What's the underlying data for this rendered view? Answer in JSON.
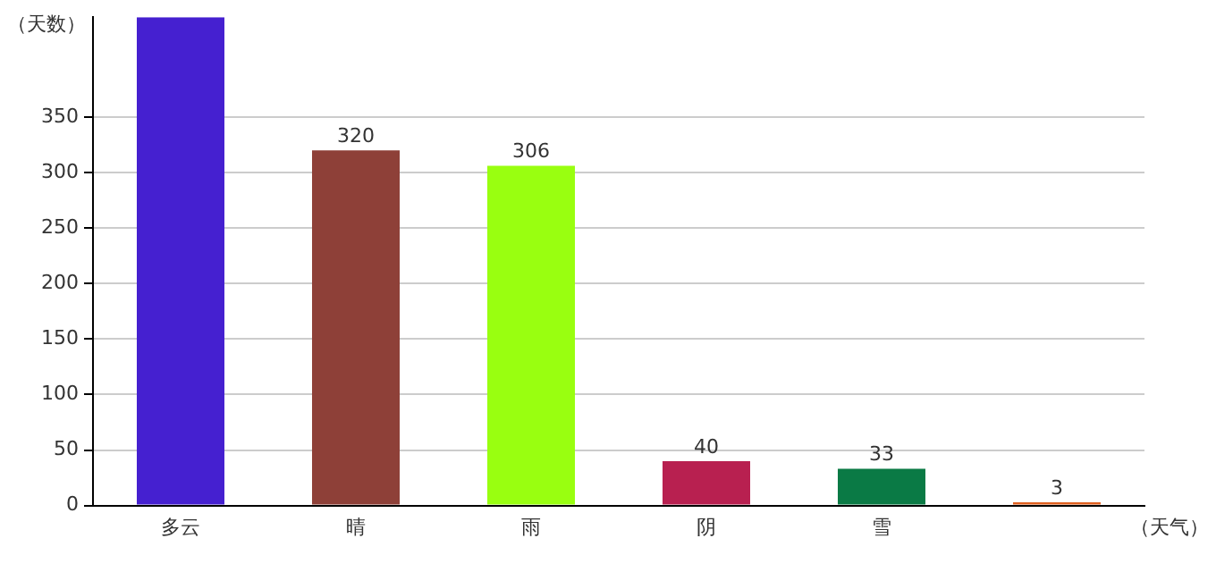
{
  "chart_data": {
    "type": "bar",
    "xlabel": "（天气）",
    "ylabel": "（天数）",
    "categories": [
      "多云",
      "晴",
      "雨",
      "阴",
      "雪",
      null
    ],
    "values": [
      440,
      320,
      306,
      40,
      33,
      3
    ],
    "value_labels": [
      null,
      "320",
      "306",
      "40",
      "33",
      "3"
    ],
    "colors": [
      "#4520d0",
      "#8e4038",
      "#99ff10",
      "#b82050",
      "#0a7a45",
      "#e06020"
    ],
    "ylim": [
      0,
      440
    ],
    "yticks": [
      0,
      50,
      100,
      150,
      200,
      250,
      300,
      350
    ],
    "grid": "y",
    "legend": false
  }
}
